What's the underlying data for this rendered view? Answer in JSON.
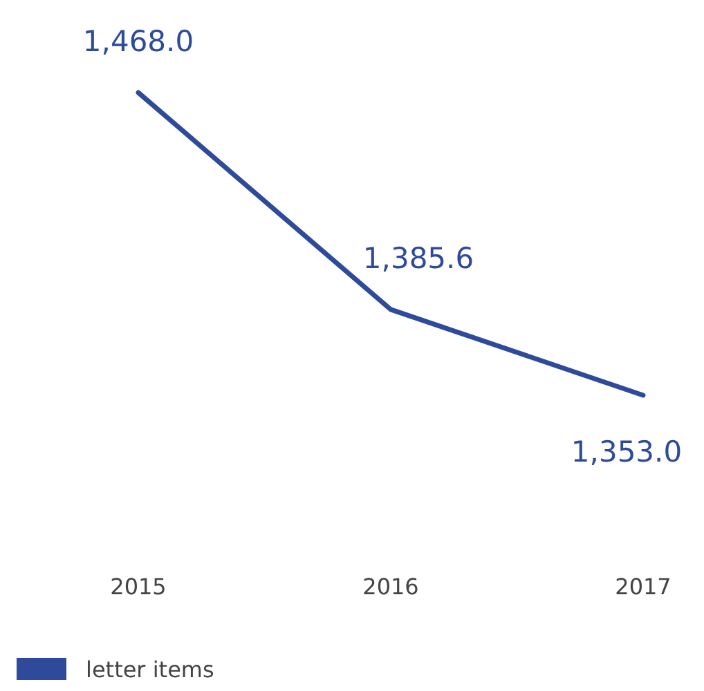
{
  "chart_data": {
    "type": "line",
    "categories": [
      "2015",
      "2016",
      "2017"
    ],
    "series": [
      {
        "name": "letter items",
        "color": "#2e4b9b",
        "values": [
          1468.0,
          1385.6,
          1353.0
        ],
        "value_labels": [
          "1,468.0",
          "1,385.6",
          "1,353.0"
        ]
      }
    ],
    "legend": "bottom left",
    "marker": "none",
    "line_style": "solid"
  }
}
